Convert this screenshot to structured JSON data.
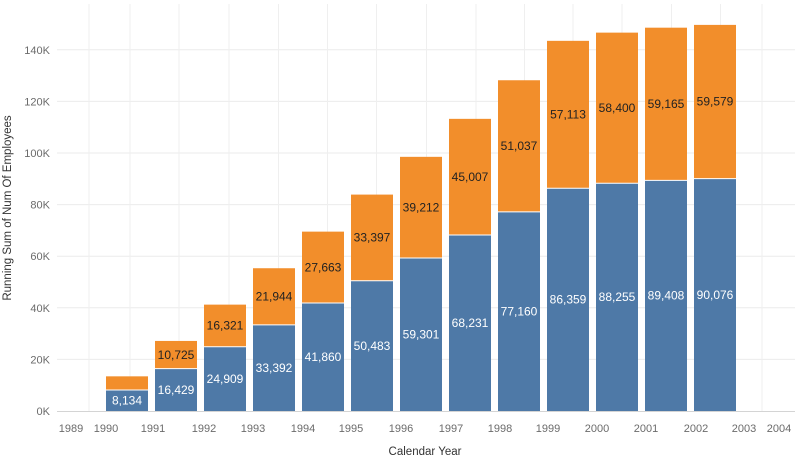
{
  "chart_data": {
    "type": "bar",
    "stacked": true,
    "xlabel": "Calendar Year",
    "ylabel": "Running Sum of Num Of Employees",
    "ylim": [
      0,
      150000
    ],
    "y_ticks": [
      "0K",
      "20K",
      "40K",
      "60K",
      "80K",
      "100K",
      "120K",
      "140K"
    ],
    "y_tick_values": [
      0,
      20000,
      40000,
      60000,
      80000,
      100000,
      120000,
      140000
    ],
    "x_ticks": [
      "1989",
      "1990",
      "1991",
      "1992",
      "1993",
      "1994",
      "1995",
      "1996",
      "1997",
      "1998",
      "1999",
      "2000",
      "2001",
      "2002",
      "2003",
      "2004"
    ],
    "categories": [
      "1990",
      "1991",
      "1992",
      "1993",
      "1994",
      "1995",
      "1996",
      "1997",
      "1998",
      "1999",
      "2000",
      "2001",
      "2002"
    ],
    "series": [
      {
        "color": "#4e79a7",
        "values": [
          8134,
          16429,
          24909,
          33392,
          41860,
          50483,
          59301,
          68231,
          77160,
          86359,
          88255,
          89408,
          90076
        ],
        "labels": [
          "8,134",
          "16,429",
          "24,909",
          "33,392",
          "41,860",
          "50,483",
          "59,301",
          "68,231",
          "77,160",
          "86,359",
          "88,255",
          "89,408",
          "90,076"
        ]
      },
      {
        "color": "#f28e2b",
        "values": [
          5300,
          10725,
          16321,
          21944,
          27663,
          33397,
          39212,
          45007,
          51037,
          57113,
          58400,
          59165,
          59579
        ],
        "labels": [
          "",
          "10,725",
          "16,321",
          "21,944",
          "27,663",
          "33,397",
          "39,212",
          "45,007",
          "51,037",
          "57,113",
          "58,400",
          "59,165",
          "59,579"
        ]
      }
    ],
    "grid": true,
    "legend": "none"
  }
}
